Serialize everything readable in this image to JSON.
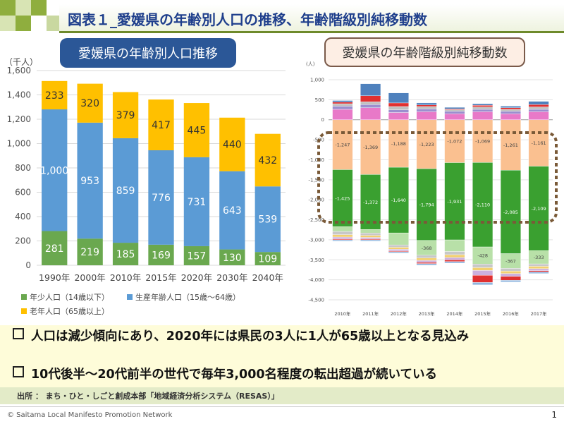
{
  "title": "図表１_愛媛県の年齢別人口の推移、年齢階級別純移動数",
  "left_label": "愛媛県の年齢別人口推移",
  "right_label": "愛媛県の年齢階級別純移動数",
  "chart_data": [
    {
      "type": "bar",
      "stacked": true,
      "unit_label": "（千人）",
      "categories": [
        "1990年",
        "2000年",
        "2010年",
        "2015年",
        "2020年",
        "2030年",
        "2040年"
      ],
      "ylim": [
        0,
        1600
      ],
      "yticks": [
        "0",
        "200",
        "400",
        "600",
        "800",
        "1,000",
        "1,200",
        "1,400",
        "1,600"
      ],
      "grid": true,
      "legend_position": "bottom",
      "series": [
        {
          "name": "年少人口（14歳以下）",
          "color": "#6aa84f",
          "values": [
            281,
            219,
            185,
            169,
            157,
            130,
            109
          ],
          "labels": [
            "281",
            "219",
            "185",
            "169",
            "157",
            "130",
            "109"
          ]
        },
        {
          "name": "生産年齢人口（15歳〜64歳）",
          "color": "#5b9bd5",
          "values": [
            1000,
            953,
            859,
            776,
            731,
            643,
            539
          ],
          "labels": [
            "1,000",
            "953",
            "859",
            "776",
            "731",
            "643",
            "539"
          ]
        },
        {
          "name": "老年人口（65歳以上）",
          "color": "#ffc000",
          "values": [
            233,
            320,
            379,
            417,
            445,
            440,
            432
          ],
          "labels": [
            "233",
            "320",
            "379",
            "417",
            "445",
            "440",
            "432"
          ]
        }
      ]
    },
    {
      "type": "bar",
      "stacked": true,
      "unit_label": "(人)",
      "categories": [
        "2010年",
        "2011年",
        "2012年",
        "2013年",
        "2014年",
        "2015年",
        "2016年",
        "2017年"
      ],
      "ylim": [
        -4500,
        1000
      ],
      "yticks": [
        1000,
        500,
        0,
        -500,
        -1000,
        -1500,
        -2000,
        -2500,
        -3000,
        -3500,
        -4000,
        -4500
      ],
      "ytick_labels": [
        "1,000",
        "500",
        "0",
        "-500",
        "-1,000",
        "-1,500",
        "-2,000",
        "-2,500",
        "-3,000",
        "-3,500",
        "-4,000",
        "-4,500"
      ],
      "grid": true,
      "highlight_note": "dotted box around 15-24 age groups",
      "series": [
        {
          "color": "#fac090",
          "values": [
            -1247,
            -1369,
            -1188,
            -1223,
            -1072,
            -1069,
            -1261,
            -1161
          ],
          "labels": [
            "-1,247",
            "-1,369",
            "-1,188",
            "-1,223",
            "-1,072",
            "-1,069",
            "-1,261",
            "-1,161"
          ]
        },
        {
          "color": "#3aa030",
          "values": [
            -1425,
            -1372,
            -1640,
            -1794,
            -1931,
            -2110,
            -2085,
            -2109
          ],
          "labels": [
            "-1,425",
            "-1,372",
            "-1,640",
            "-1,794",
            "-1,931",
            "-2,110",
            "-2,085",
            "-2,109"
          ]
        },
        {
          "color": "#b8e0a8",
          "values": [
            -120,
            -90,
            -300,
            -368,
            -290,
            -428,
            -367,
            -333
          ],
          "labels": [
            "",
            "",
            "",
            "-368",
            "",
            "-428",
            "-367",
            "-333"
          ]
        },
        {
          "color": "#c8c8c8",
          "values": [
            -80,
            -60,
            -60,
            -70,
            -80,
            -90,
            -70,
            -60
          ],
          "labels": []
        },
        {
          "color": "#f2d070",
          "values": [
            -60,
            -50,
            -50,
            -60,
            -70,
            -70,
            -60,
            -60
          ],
          "labels": []
        },
        {
          "color": "#ccb0dd",
          "values": [
            -50,
            -40,
            -40,
            -50,
            -60,
            -120,
            -70,
            -50
          ],
          "labels": []
        },
        {
          "color": "#e03030",
          "values": [
            -20,
            -20,
            -20,
            -30,
            -40,
            -180,
            -100,
            -30
          ],
          "labels": []
        },
        {
          "color": "#8fb6e0",
          "values": [
            -30,
            -30,
            -30,
            -40,
            -40,
            -60,
            -40,
            -40
          ],
          "labels": []
        },
        {
          "color": "#e879c8",
          "values": [
            260,
            300,
            180,
            200,
            150,
            200,
            150,
            200
          ],
          "labels": []
        },
        {
          "color": "#9b8fcf",
          "values": [
            80,
            80,
            70,
            70,
            60,
            60,
            60,
            60
          ],
          "labels": []
        },
        {
          "color": "#c0c0c0",
          "values": [
            60,
            70,
            80,
            60,
            40,
            60,
            50,
            60
          ],
          "labels": []
        },
        {
          "color": "#e03030",
          "values": [
            40,
            150,
            90,
            40,
            20,
            40,
            40,
            60
          ],
          "labels": []
        },
        {
          "color": "#4f81bd",
          "values": [
            40,
            300,
            250,
            50,
            40,
            40,
            40,
            80
          ],
          "labels": []
        }
      ]
    }
  ],
  "bullets": [
    "人口は減少傾向にあり、2020年には県民の3人に1人が65歳以上となる見込み",
    "10代後半〜20代前半の世代で毎年3,000名程度の転出超過が続いている"
  ],
  "source": "出所 ： まち・ひと・しごと創成本部「地域経済分析システム（RESAS）」",
  "copyright": "© Saitama Local Manifesto Promotion Network",
  "page_number": "1"
}
